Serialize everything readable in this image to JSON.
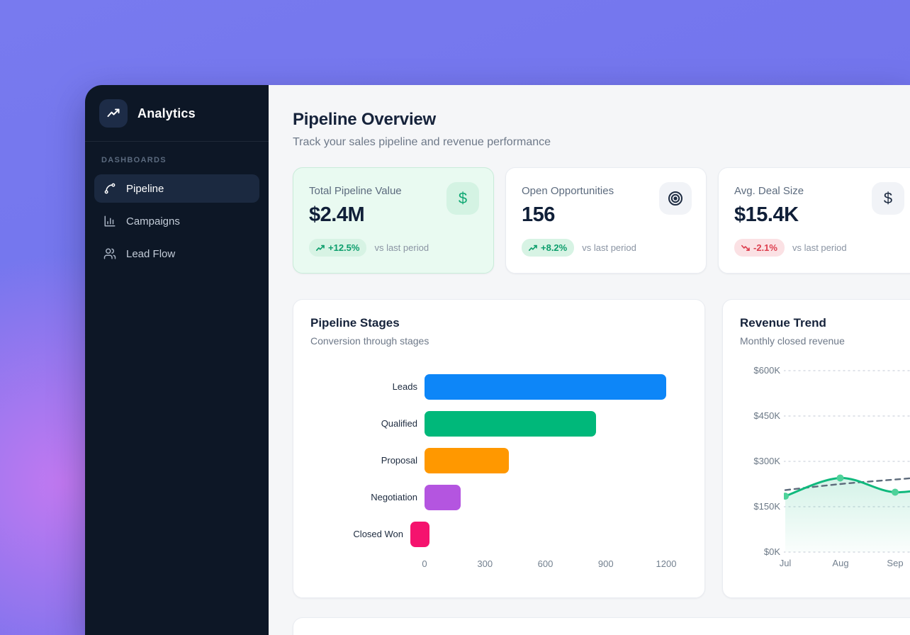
{
  "app": {
    "name": "Analytics"
  },
  "sidebar": {
    "section_label": "DASHBOARDS",
    "items": [
      {
        "label": "Pipeline",
        "icon": "spline-icon",
        "active": true
      },
      {
        "label": "Campaigns",
        "icon": "bar-chart-icon",
        "active": false
      },
      {
        "label": "Lead Flow",
        "icon": "users-icon",
        "active": false
      }
    ]
  },
  "header": {
    "title": "Pipeline Overview",
    "subtitle": "Track your sales pipeline and revenue performance"
  },
  "stats": [
    {
      "label": "Total Pipeline Value",
      "value": "$2.4M",
      "change": "+12.5%",
      "trend": "up",
      "compare_label": "vs last period",
      "icon": "dollar-icon",
      "highlighted": true
    },
    {
      "label": "Open Opportunities",
      "value": "156",
      "change": "+8.2%",
      "trend": "up",
      "compare_label": "vs last period",
      "icon": "target-icon",
      "highlighted": false
    },
    {
      "label": "Avg. Deal Size",
      "value": "$15.4K",
      "change": "-2.1%",
      "trend": "down",
      "compare_label": "vs last period",
      "icon": "dollar-icon",
      "highlighted": false
    }
  ],
  "chart_data": [
    {
      "type": "bar",
      "orientation": "horizontal",
      "title": "Pipeline Stages",
      "subtitle": "Conversion through stages",
      "categories": [
        "Leads",
        "Qualified",
        "Proposal",
        "Negotiation",
        "Closed Won"
      ],
      "values": [
        1200,
        850,
        420,
        180,
        95
      ],
      "colors": [
        "#0d86f8",
        "#00b87a",
        "#ff9800",
        "#b455e0",
        "#f5136e"
      ],
      "xlim": [
        0,
        1200
      ],
      "xticks": [
        0,
        300,
        600,
        900,
        1200
      ],
      "grid": false,
      "legend": "none"
    },
    {
      "type": "line",
      "title": "Revenue Trend",
      "subtitle": "Monthly closed revenue",
      "x": [
        "Jul",
        "Aug",
        "Sep"
      ],
      "series": [
        {
          "name": "revenue",
          "values": [
            185,
            245,
            198
          ],
          "style": "solid",
          "color": "#10b97d",
          "dot_color": "#4ed29a",
          "area": true
        },
        {
          "name": "target",
          "values": [
            205,
            225,
            240
          ],
          "style": "dashed",
          "color": "#5d6b7b",
          "area": false
        }
      ],
      "unit": "$K",
      "ylim": [
        0,
        600
      ],
      "yticks": [
        "$0K",
        "$150K",
        "$300K",
        "$450K",
        "$600K"
      ],
      "grid": true,
      "legend": "none"
    }
  ],
  "colors": {
    "backdrop_purple": "#7173ec",
    "backdrop_blob": "#d07af2",
    "sidebar_bg": "#0d1726",
    "sidebar_active_bg": "#1b2940",
    "content_bg": "#f5f6f8",
    "highlight_card_bg": "#e9faf1",
    "positive": "#0c9e6c",
    "negative": "#dd3e4e"
  }
}
